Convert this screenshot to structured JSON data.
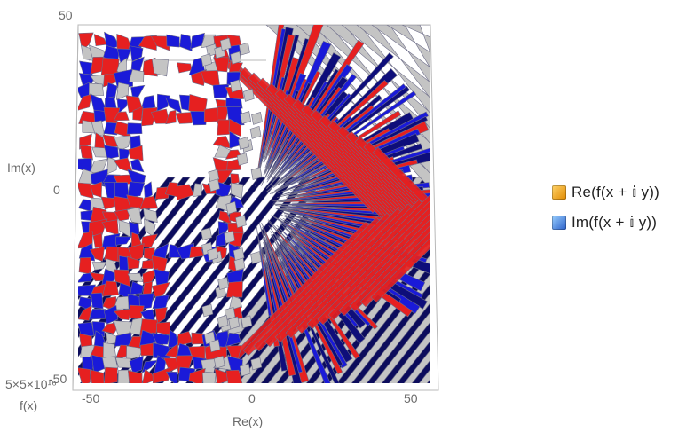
{
  "chart_data": {
    "type": "3d-surface",
    "xlabel": "Re(x)",
    "ylabel": "Im(x)",
    "zlabel": "f(x)",
    "x_ticks": [
      "-50",
      "0",
      "50"
    ],
    "y_ticks": [
      "50",
      "0",
      "-50"
    ],
    "z_tick_overlap": [
      "5×10^16",
      "-5×10^16"
    ],
    "z_tick_text": "5×5×10¹⁶",
    "y_tick_overlap": "-50",
    "xlim": [
      -55,
      55
    ],
    "ylim": [
      -50,
      50
    ],
    "series": [
      {
        "name": "Re(f(x + 𝕚 y))",
        "color": "#f0a020"
      },
      {
        "name": "Im(f(x + 𝕚 y))",
        "color": "#3b7fd9"
      }
    ],
    "legend_position": "right",
    "colors": {
      "red": "#e62020",
      "blue": "#1a1ad8",
      "navy": "#0c0c5c",
      "gray": "#c4c4c4",
      "edge": "#6e6e8a"
    }
  },
  "legend": {
    "items": [
      {
        "label": "Re(f(x + 𝕚 y))",
        "color": "#f5b21e"
      },
      {
        "label": "Im(f(x + 𝕚 y))",
        "color": "#4a8fe8"
      }
    ]
  }
}
